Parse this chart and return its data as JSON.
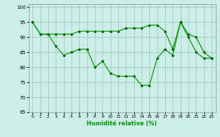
{
  "xlabel": "Humidité relative (%)",
  "background_color": "#cceee8",
  "grid_color": "#aaccbb",
  "line_color": "#009900",
  "marker_color": "#006600",
  "ylim": [
    65,
    101
  ],
  "xlim": [
    -0.5,
    23.5
  ],
  "yticks": [
    65,
    70,
    75,
    80,
    85,
    90,
    95,
    100
  ],
  "xticks": [
    0,
    1,
    2,
    3,
    4,
    5,
    6,
    7,
    8,
    9,
    10,
    11,
    12,
    13,
    14,
    15,
    16,
    17,
    18,
    19,
    20,
    21,
    22,
    23
  ],
  "series_upper_x": [
    0,
    1,
    2,
    3,
    4,
    5,
    6,
    7,
    8,
    9,
    10,
    11,
    12,
    13,
    14,
    15,
    16,
    17,
    18,
    19,
    20,
    21,
    22,
    23
  ],
  "series_upper_y": [
    95,
    91,
    91,
    91,
    91,
    91,
    92,
    92,
    92,
    92,
    92,
    92,
    93,
    93,
    93,
    94,
    94,
    92,
    86,
    95,
    91,
    90,
    85,
    83
  ],
  "series_lower_x": [
    0,
    1,
    2,
    3,
    4,
    5,
    6,
    7,
    8,
    9,
    10,
    11,
    12,
    13,
    14,
    15,
    16,
    17,
    18,
    19,
    20,
    21,
    22,
    23
  ],
  "series_lower_y": [
    95,
    91,
    91,
    87,
    84,
    85,
    86,
    86,
    80,
    82,
    78,
    77,
    77,
    77,
    74,
    74,
    83,
    86,
    84,
    95,
    90,
    85,
    83,
    83
  ]
}
